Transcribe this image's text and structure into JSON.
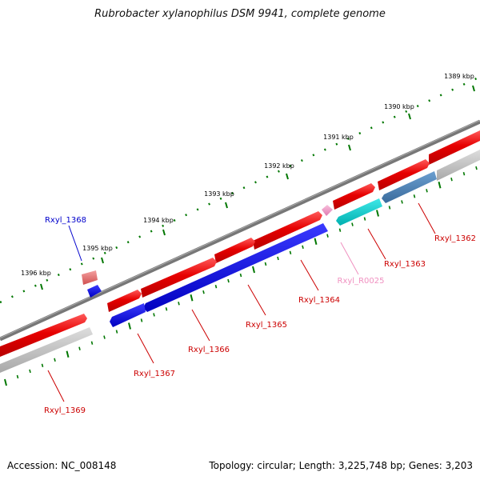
{
  "title": "Rubrobacter xylanophilus DSM 9941, complete genome",
  "footer": {
    "accession": "Accession: NC_008148",
    "topology": "Topology: circular; Length: 3,225,748 bp; Genes: 3,203"
  },
  "ruler": {
    "ticks": [
      {
        "label": "1389 kbp"
      },
      {
        "label": "1390 kbp"
      },
      {
        "label": "1391 kbp"
      },
      {
        "label": "1392 kbp"
      },
      {
        "label": "1393 kbp"
      },
      {
        "label": "1394 kbp"
      },
      {
        "label": "1395 kbp"
      },
      {
        "label": "1396 kbp"
      }
    ]
  },
  "colors": {
    "forward_cds": "#e60000",
    "reverse_cds": "#0000dd",
    "trna": "#00c8c8",
    "pseudo": "#f0a0c8",
    "steel": "#4a7fb5",
    "backbone": "#777777",
    "grey_bar": "#b8b8b8",
    "tick_green": "#007700",
    "label_red": "#cc0000",
    "label_blue": "#0000cc",
    "label_pink": "#f090c0"
  },
  "genes": [
    {
      "label": "Rxyl_1362",
      "strand": "forward"
    },
    {
      "label": "Rxyl_1363",
      "strand": "forward"
    },
    {
      "label": "Rxyl_R0025",
      "strand": "rna"
    },
    {
      "label": "Rxyl_1364",
      "strand": "forward"
    },
    {
      "label": "Rxyl_1365",
      "strand": "forward"
    },
    {
      "label": "Rxyl_1366",
      "strand": "reverse"
    },
    {
      "label": "Rxyl_1367",
      "strand": "forward"
    },
    {
      "label": "Rxyl_1368",
      "strand": "reverse"
    },
    {
      "label": "Rxyl_1369",
      "strand": "forward"
    }
  ]
}
